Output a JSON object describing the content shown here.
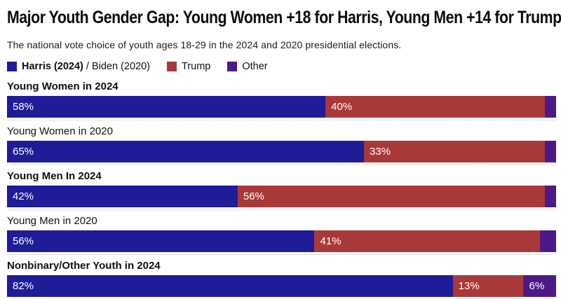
{
  "title": "Major Youth Gender Gap: Young Women +18 for Harris, Young Men +14 for Trump",
  "subtitle": "The national vote choice of youth ages 18-29 in the 2024 and 2020 presidential elections.",
  "legend": {
    "harris_bold": "Harris (2024)",
    "harris_rest": " / Biden (2020)",
    "trump": "Trump",
    "other": "Other"
  },
  "colors": {
    "harris": "#1e1c96",
    "trump": "#a93939",
    "other": "#4c1a86"
  },
  "chart_data": {
    "type": "bar",
    "orientation": "horizontal",
    "stacked": true,
    "unit": "%",
    "title": "Major Youth Gender Gap: Young Women +18 for Harris, Young Men +14 for Trump",
    "subtitle": "The national vote choice of youth ages 18-29 in the 2024 and 2020 presidential elections.",
    "series_names": [
      "Harris (2024) / Biden (2020)",
      "Trump",
      "Other"
    ],
    "xlim": [
      0,
      100
    ],
    "grid": false,
    "legend_position": "top",
    "rows": [
      {
        "label": "Young Women in 2024",
        "bold": true,
        "segments": [
          {
            "series": "harris",
            "value": 58,
            "text": "58%"
          },
          {
            "series": "trump",
            "value": 40,
            "text": "40%"
          },
          {
            "series": "other",
            "value": 2,
            "text": ""
          }
        ]
      },
      {
        "label": "Young Women in 2020",
        "bold": false,
        "segments": [
          {
            "series": "harris",
            "value": 65,
            "text": "65%"
          },
          {
            "series": "trump",
            "value": 33,
            "text": "33%"
          },
          {
            "series": "other",
            "value": 2,
            "text": ""
          }
        ]
      },
      {
        "label": "Young Men In 2024",
        "bold": true,
        "segments": [
          {
            "series": "harris",
            "value": 42,
            "text": "42%"
          },
          {
            "series": "trump",
            "value": 56,
            "text": "56%"
          },
          {
            "series": "other",
            "value": 2,
            "text": ""
          }
        ]
      },
      {
        "label": "Young Men in 2020",
        "bold": false,
        "segments": [
          {
            "series": "harris",
            "value": 56,
            "text": "56%"
          },
          {
            "series": "trump",
            "value": 41,
            "text": "41%"
          },
          {
            "series": "other",
            "value": 3,
            "text": ""
          }
        ]
      },
      {
        "label": "Nonbinary/Other Youth in 2024",
        "bold": true,
        "segments": [
          {
            "series": "harris",
            "value": 82,
            "text": "82%"
          },
          {
            "series": "trump",
            "value": 13,
            "text": "13%"
          },
          {
            "series": "other",
            "value": 6,
            "text": "6%"
          }
        ]
      }
    ]
  }
}
